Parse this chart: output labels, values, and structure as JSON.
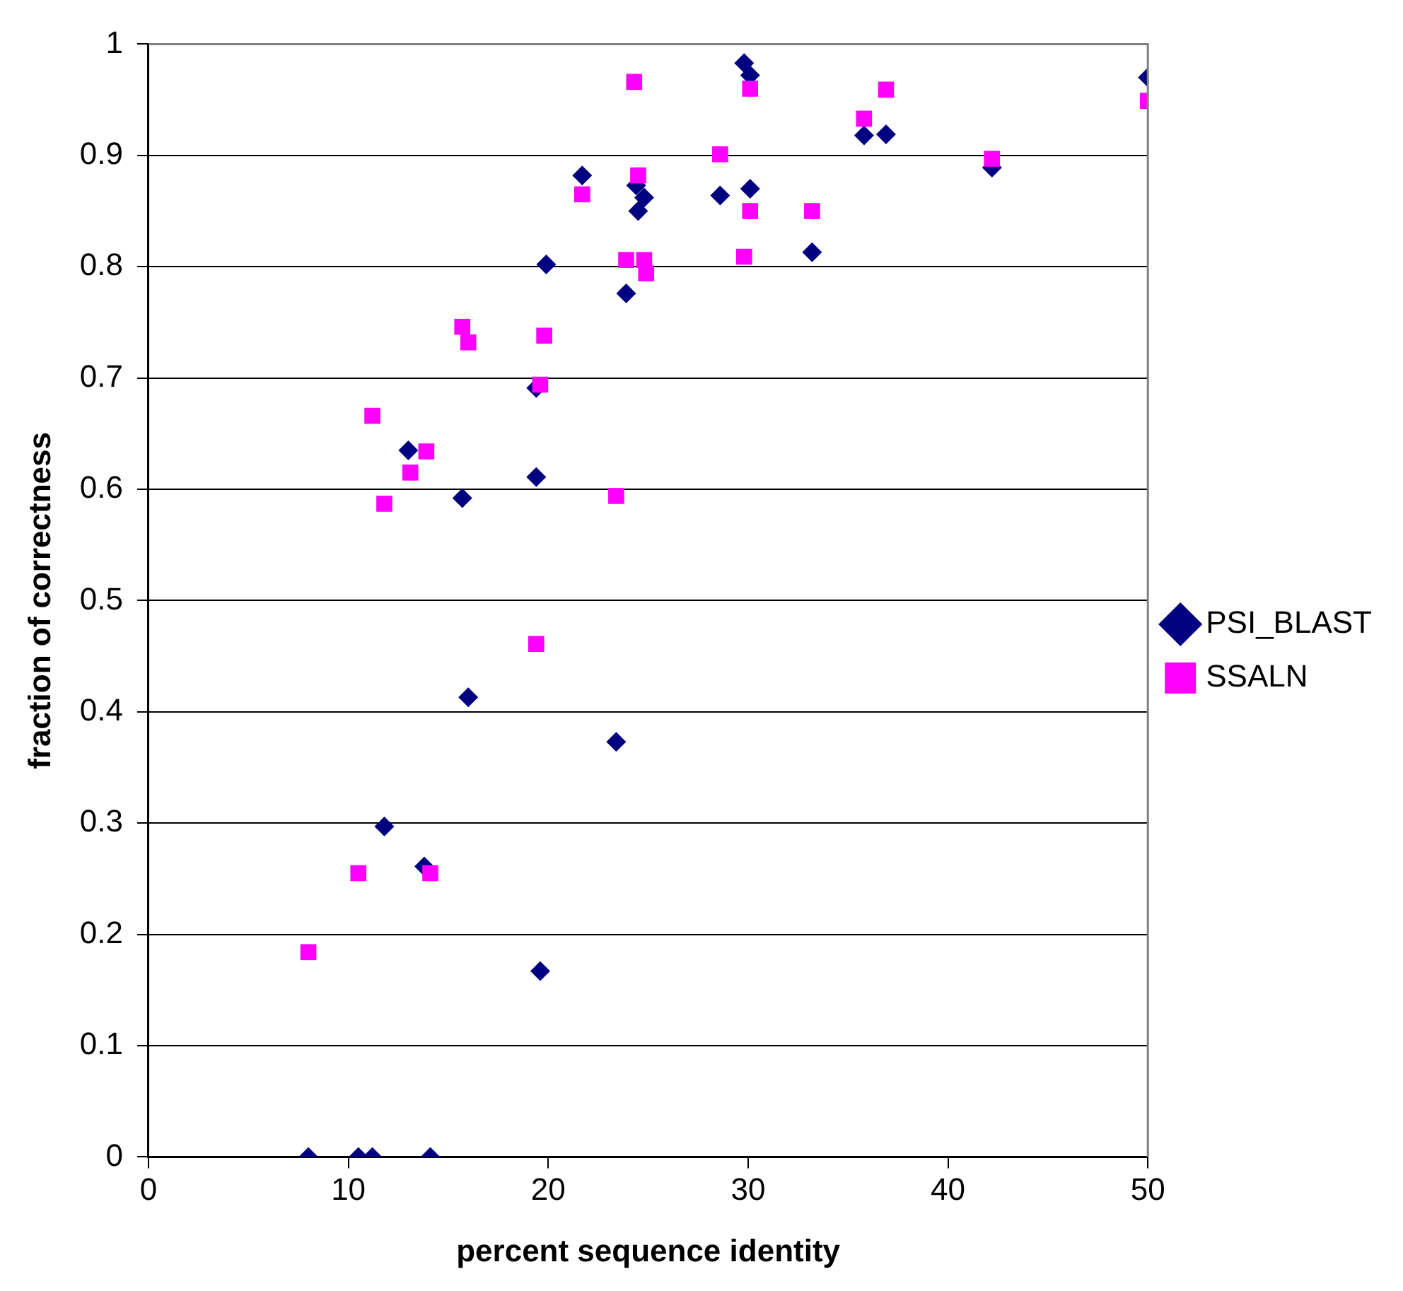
{
  "chart_data": {
    "type": "scatter",
    "xlabel": "percent sequence identity",
    "ylabel": "fraction of correctness",
    "xlim": [
      0,
      50
    ],
    "xticks": [
      0,
      10,
      20,
      30,
      40,
      50
    ],
    "ylim": [
      0,
      1
    ],
    "yticks": [
      0,
      0.1,
      0.2,
      0.3,
      0.4,
      0.5,
      0.6,
      0.7,
      0.8,
      0.9,
      1
    ],
    "grid": "y",
    "legend": "right",
    "series": [
      {
        "name": "PSI_BLAST",
        "color": "#000080",
        "marker": "diamond",
        "x": [
          8.0,
          10.5,
          11.2,
          14.1,
          11.8,
          13.8,
          13.0,
          15.7,
          16.0,
          19.4,
          19.4,
          19.6,
          19.9,
          23.4,
          21.7,
          23.9,
          24.4,
          24.5,
          24.8,
          28.6,
          29.8,
          30.1,
          30.1,
          33.2,
          35.8,
          36.9,
          42.2,
          50.0
        ],
        "values": [
          0,
          0,
          0,
          0,
          0.297,
          0.261,
          0.635,
          0.592,
          0.413,
          0.691,
          0.611,
          0.167,
          0.802,
          0.373,
          0.882,
          0.776,
          0.873,
          0.85,
          0.862,
          0.864,
          0.983,
          0.972,
          0.87,
          0.813,
          0.918,
          0.919,
          0.889,
          0.97
        ]
      },
      {
        "name": "SSALN",
        "color": "#ff00ff",
        "marker": "square",
        "x": [
          8.0,
          10.5,
          14.1,
          19.4,
          11.2,
          13.9,
          13.1,
          11.8,
          15.7,
          16.0,
          19.8,
          19.6,
          23.4,
          21.7,
          24.3,
          24.5,
          23.9,
          24.8,
          24.9,
          28.6,
          29.8,
          30.1,
          30.1,
          33.2,
          35.8,
          36.9,
          42.2,
          50.0
        ],
        "values": [
          0.184,
          0.255,
          0.255,
          0.461,
          0.666,
          0.634,
          0.615,
          0.587,
          0.746,
          0.732,
          0.738,
          0.694,
          0.594,
          0.865,
          0.966,
          0.882,
          0.806,
          0.806,
          0.794,
          0.901,
          0.809,
          0.96,
          0.85,
          0.85,
          0.933,
          0.959,
          0.897,
          0.949
        ]
      }
    ]
  }
}
